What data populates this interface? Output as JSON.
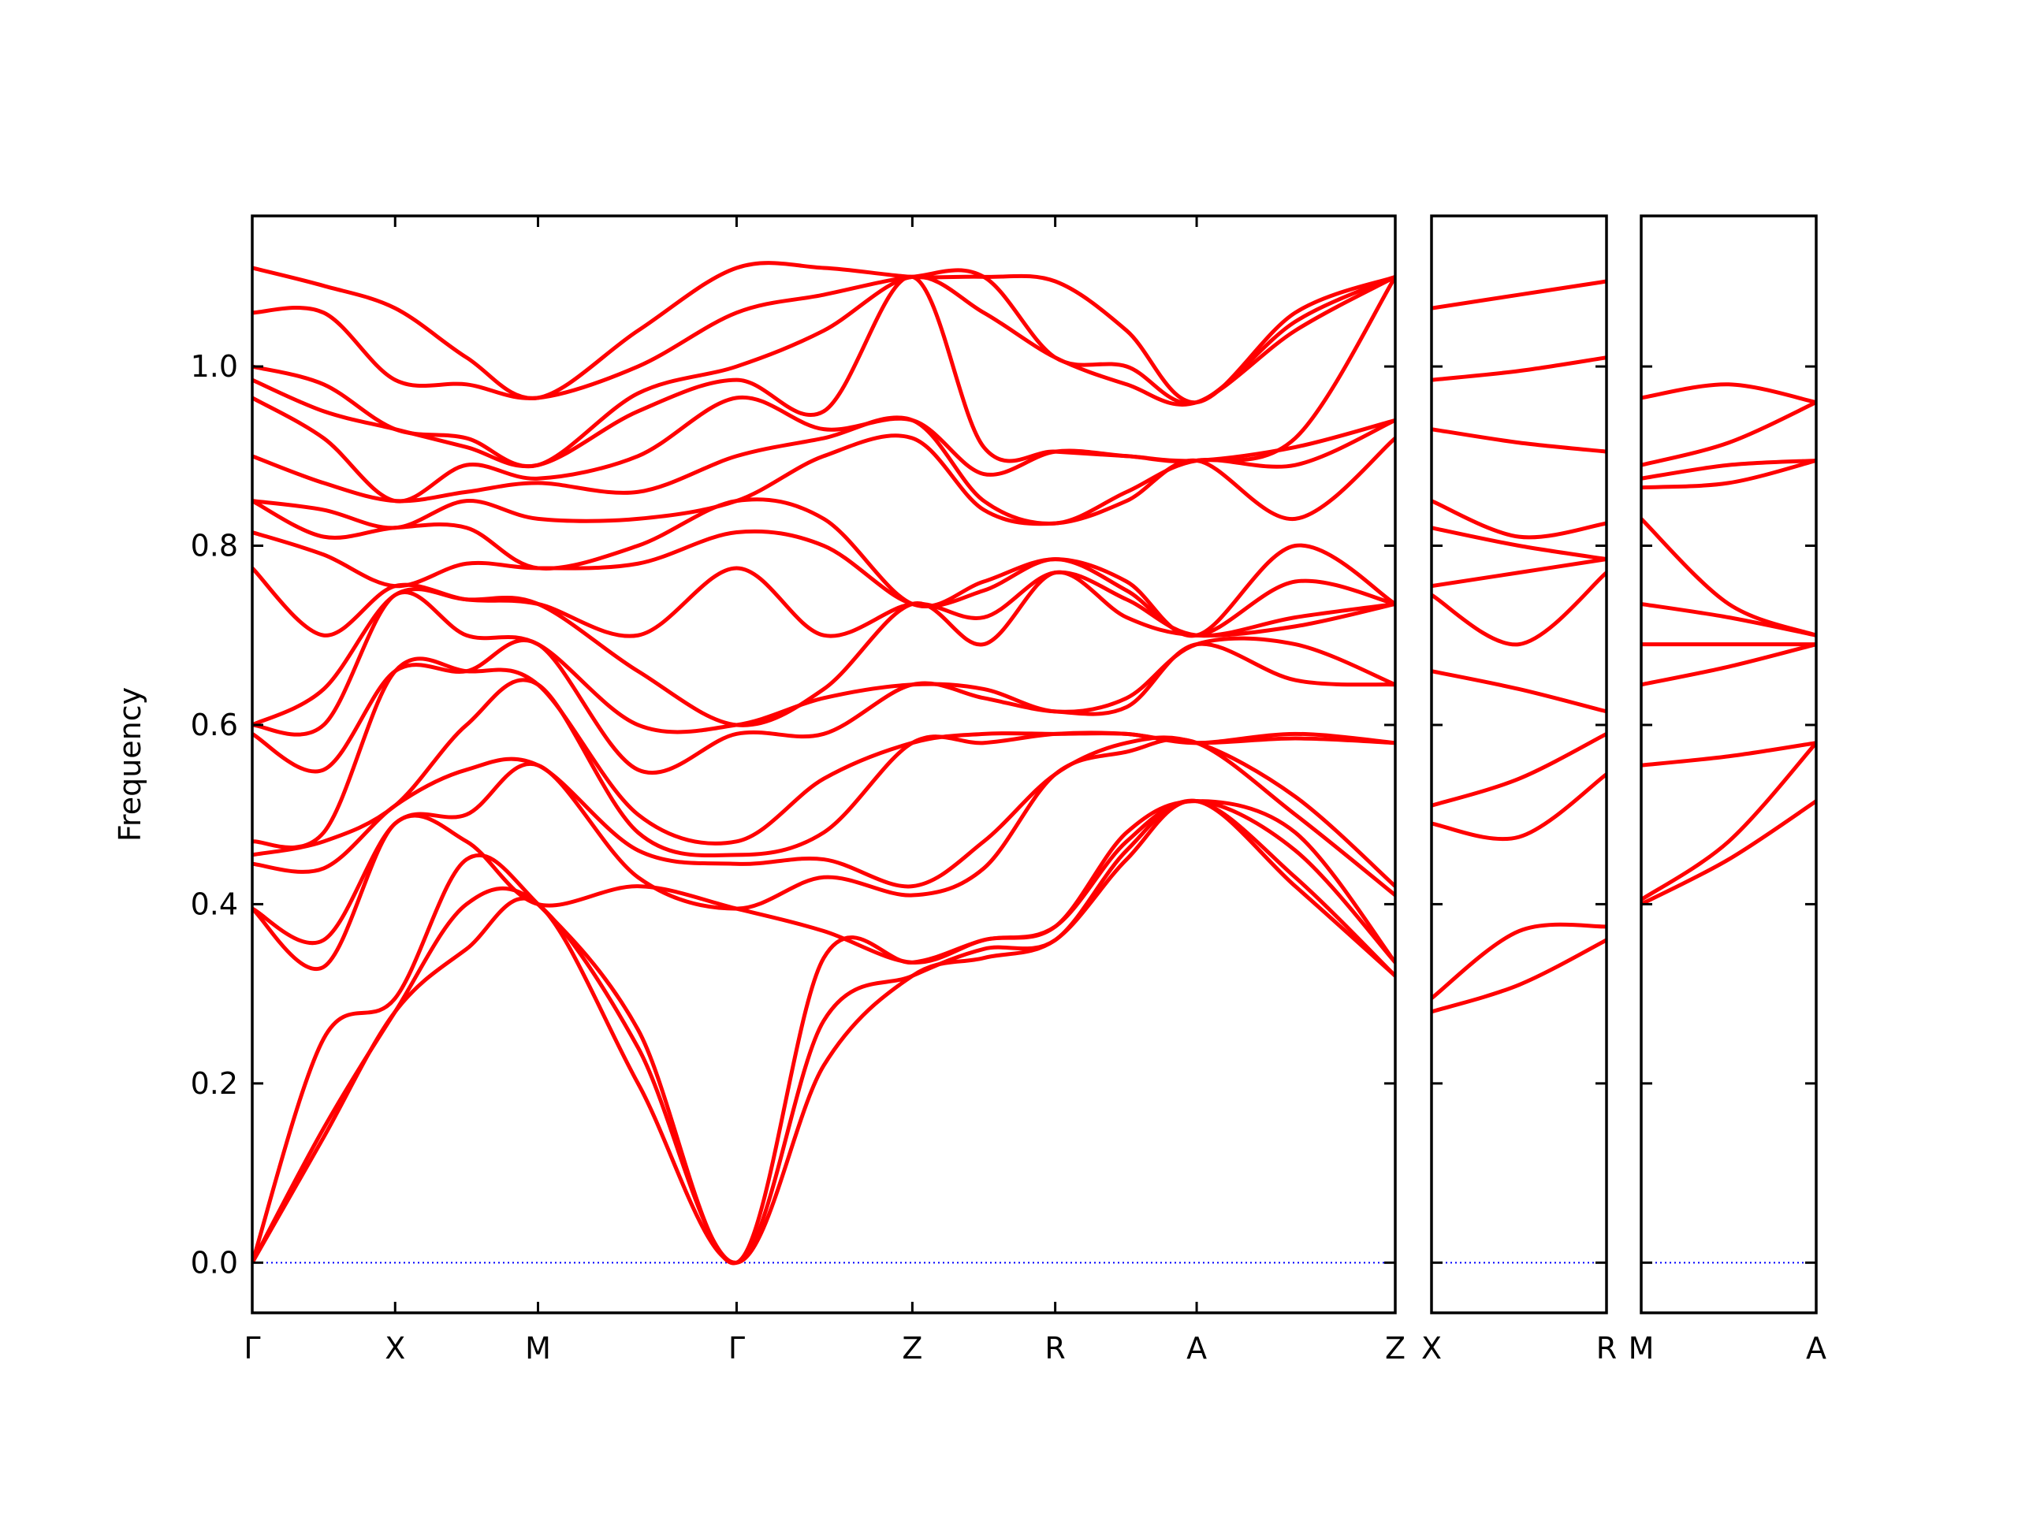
{
  "chart_data": [
    {
      "type": "line",
      "ylabel": "Frequency",
      "color": "#ff0000",
      "xlim": [
        0,
        8
      ],
      "ylim": [
        -0.056,
        1.168
      ],
      "yticks": [
        {
          "value": 0,
          "label": "0.0"
        },
        0.2,
        0.4,
        0.6,
        0.8,
        {
          "value": 1,
          "label": "1.0"
        }
      ],
      "ytick_labels": true,
      "xticks": [
        {
          "value": 0,
          "label": "Γ"
        },
        {
          "value": 1,
          "label": "X"
        },
        {
          "value": 2,
          "label": "M"
        },
        {
          "value": 3.39,
          "label": "Γ"
        },
        {
          "value": 4.62,
          "label": "Z"
        },
        {
          "value": 5.62,
          "label": "R"
        },
        {
          "value": 6.61,
          "label": "A"
        },
        {
          "value": 8,
          "label": "Z"
        }
      ],
      "hline": {
        "value": 0,
        "color": "#0000ff"
      },
      "x": [
        0,
        0.5,
        1,
        1.5,
        2,
        2.7,
        3.39,
        4.0,
        4.62,
        5.12,
        5.62,
        6.12,
        6.61,
        7.3,
        8.0
      ],
      "series": [
        {
          "values": [
            0,
            0.14,
            0.28,
            0.35,
            0.4,
            0.2,
            0,
            0.22,
            0.32,
            0.34,
            0.36,
            0.45,
            0.515,
            0.42,
            0.32
          ]
        },
        {
          "values": [
            0,
            0.15,
            0.28,
            0.4,
            0.4,
            0.24,
            0,
            0.27,
            0.32,
            0.35,
            0.36,
            0.46,
            0.515,
            0.43,
            0.32
          ]
        },
        {
          "values": [
            0,
            0.25,
            0.295,
            0.45,
            0.4,
            0.26,
            0,
            0.34,
            0.335,
            0.36,
            0.375,
            0.47,
            0.515,
            0.46,
            0.335
          ]
        },
        {
          "values": [
            0.395,
            0.33,
            0.49,
            0.47,
            0.4,
            0.42,
            0.395,
            0.37,
            0.335,
            0.36,
            0.375,
            0.48,
            0.515,
            0.48,
            0.335
          ]
        },
        {
          "values": [
            0.395,
            0.36,
            0.49,
            0.5,
            0.555,
            0.43,
            0.395,
            0.43,
            0.41,
            0.44,
            0.545,
            0.57,
            0.58,
            0.5,
            0.41
          ]
        },
        {
          "values": [
            0.445,
            0.44,
            0.51,
            0.55,
            0.555,
            0.46,
            0.445,
            0.45,
            0.42,
            0.47,
            0.545,
            0.58,
            0.58,
            0.52,
            0.42
          ]
        },
        {
          "values": [
            0.455,
            0.47,
            0.51,
            0.6,
            0.645,
            0.48,
            0.455,
            0.48,
            0.58,
            0.58,
            0.59,
            0.59,
            0.58,
            0.585,
            0.58
          ]
        },
        {
          "values": [
            0.47,
            0.48,
            0.66,
            0.66,
            0.645,
            0.5,
            0.47,
            0.54,
            0.58,
            0.59,
            0.59,
            0.59,
            0.58,
            0.59,
            0.58
          ]
        },
        {
          "values": [
            0.59,
            0.55,
            0.66,
            0.66,
            0.69,
            0.55,
            0.59,
            0.59,
            0.645,
            0.63,
            0.615,
            0.62,
            0.69,
            0.65,
            0.645
          ]
        },
        {
          "values": [
            0.6,
            0.6,
            0.745,
            0.7,
            0.69,
            0.6,
            0.6,
            0.63,
            0.645,
            0.64,
            0.615,
            0.63,
            0.69,
            0.69,
            0.645
          ]
        },
        {
          "values": [
            0.6,
            0.64,
            0.745,
            0.74,
            0.735,
            0.66,
            0.6,
            0.64,
            0.735,
            0.69,
            0.77,
            0.72,
            0.7,
            0.71,
            0.735
          ]
        },
        {
          "values": [
            0.775,
            0.7,
            0.755,
            0.74,
            0.735,
            0.7,
            0.775,
            0.7,
            0.735,
            0.72,
            0.77,
            0.74,
            0.7,
            0.72,
            0.735
          ]
        },
        {
          "values": [
            0.815,
            0.79,
            0.755,
            0.78,
            0.775,
            0.78,
            0.815,
            0.8,
            0.735,
            0.75,
            0.785,
            0.75,
            0.7,
            0.76,
            0.735
          ]
        },
        {
          "values": [
            0.85,
            0.81,
            0.82,
            0.82,
            0.775,
            0.8,
            0.85,
            0.83,
            0.735,
            0.76,
            0.785,
            0.76,
            0.7,
            0.8,
            0.735
          ]
        },
        {
          "values": [
            0.85,
            0.84,
            0.82,
            0.85,
            0.83,
            0.83,
            0.85,
            0.9,
            0.92,
            0.84,
            0.825,
            0.85,
            0.895,
            0.83,
            0.92
          ]
        },
        {
          "values": [
            0.9,
            0.87,
            0.85,
            0.86,
            0.87,
            0.86,
            0.9,
            0.92,
            0.94,
            0.85,
            0.825,
            0.86,
            0.895,
            0.89,
            0.94
          ]
        },
        {
          "values": [
            0.965,
            0.92,
            0.85,
            0.89,
            0.875,
            0.9,
            0.965,
            0.93,
            0.94,
            0.88,
            0.905,
            0.9,
            0.895,
            0.91,
            0.94
          ]
        },
        {
          "values": [
            0.985,
            0.95,
            0.93,
            0.91,
            0.89,
            0.95,
            0.985,
            0.95,
            1.1,
            0.91,
            0.905,
            0.9,
            0.895,
            0.92,
            1.1
          ]
        },
        {
          "values": [
            1.0,
            0.98,
            0.93,
            0.92,
            0.89,
            0.97,
            1.0,
            1.04,
            1.1,
            1.06,
            1.01,
            0.98,
            0.96,
            1.04,
            1.1
          ]
        },
        {
          "values": [
            1.06,
            1.06,
            0.985,
            0.98,
            0.965,
            1.0,
            1.06,
            1.08,
            1.1,
            1.1,
            1.01,
            1.0,
            0.96,
            1.05,
            1.1
          ]
        },
        {
          "values": [
            1.11,
            1.09,
            1.065,
            1.01,
            0.965,
            1.04,
            1.11,
            1.11,
            1.1,
            1.1,
            1.095,
            1.04,
            0.96,
            1.06,
            1.1
          ]
        }
      ]
    },
    {
      "type": "line",
      "color": "#ff0000",
      "xlim": [
        0,
        1
      ],
      "ylim": [
        -0.056,
        1.168
      ],
      "yticks": [
        {
          "value": 0,
          "label": "0.0"
        },
        0.2,
        0.4,
        0.6,
        0.8,
        {
          "value": 1,
          "label": "1.0"
        }
      ],
      "ytick_labels": false,
      "xticks": [
        {
          "value": 0,
          "label": "X"
        },
        {
          "value": 1,
          "label": "R"
        }
      ],
      "hline": {
        "value": 0,
        "color": "#0000ff"
      },
      "x": [
        0,
        0.5,
        1
      ],
      "series": [
        {
          "values": [
            0.28,
            0.31,
            0.36
          ]
        },
        {
          "values": [
            0.295,
            0.37,
            0.375
          ]
        },
        {
          "values": [
            0.49,
            0.475,
            0.545
          ]
        },
        {
          "values": [
            0.51,
            0.54,
            0.59
          ]
        },
        {
          "values": [
            0.66,
            0.64,
            0.615
          ]
        },
        {
          "values": [
            0.745,
            0.69,
            0.77
          ]
        },
        {
          "values": [
            0.755,
            0.77,
            0.785
          ]
        },
        {
          "values": [
            0.82,
            0.8,
            0.785
          ]
        },
        {
          "values": [
            0.85,
            0.81,
            0.825
          ]
        },
        {
          "values": [
            0.93,
            0.915,
            0.905
          ]
        },
        {
          "values": [
            0.985,
            0.995,
            1.01
          ]
        },
        {
          "values": [
            1.065,
            1.08,
            1.095
          ]
        }
      ]
    },
    {
      "type": "line",
      "color": "#ff0000",
      "xlim": [
        0,
        1
      ],
      "ylim": [
        -0.056,
        1.168
      ],
      "yticks": [
        {
          "value": 0,
          "label": "0.0"
        },
        0.2,
        0.4,
        0.6,
        0.8,
        {
          "value": 1,
          "label": "1.0"
        }
      ],
      "ytick_labels": false,
      "xticks": [
        {
          "value": 0,
          "label": "M"
        },
        {
          "value": 1,
          "label": "A"
        }
      ],
      "hline": {
        "value": 0,
        "color": "#0000ff"
      },
      "x": [
        0,
        0.5,
        1
      ],
      "series": [
        {
          "values": [
            0.4,
            0.45,
            0.515
          ]
        },
        {
          "values": [
            0.405,
            0.47,
            0.58
          ]
        },
        {
          "values": [
            0.555,
            0.565,
            0.58
          ]
        },
        {
          "values": [
            0.645,
            0.665,
            0.69
          ]
        },
        {
          "values": [
            0.69,
            0.69,
            0.69
          ]
        },
        {
          "values": [
            0.735,
            0.72,
            0.7
          ]
        },
        {
          "values": [
            0.83,
            0.735,
            0.7
          ]
        },
        {
          "values": [
            0.865,
            0.87,
            0.895
          ]
        },
        {
          "values": [
            0.875,
            0.89,
            0.895
          ]
        },
        {
          "values": [
            0.89,
            0.915,
            0.96
          ]
        },
        {
          "values": [
            0.965,
            0.98,
            0.96
          ]
        }
      ]
    }
  ]
}
